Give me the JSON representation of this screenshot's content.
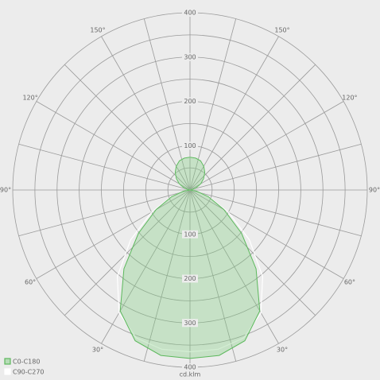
{
  "chart_data": {
    "type": "polar",
    "unit_label": "cd.klm",
    "rlim": [
      0,
      400
    ],
    "rgrid": [
      50,
      100,
      150,
      200,
      250,
      300,
      350,
      400
    ],
    "rticks": [
      100,
      200,
      300,
      400
    ],
    "angle_grid_step": 15,
    "angle_ticks": [
      {
        "value": 30,
        "label": "30°"
      },
      {
        "value": 60,
        "label": "60°"
      },
      {
        "value": 90,
        "label": "90°"
      },
      {
        "value": 120,
        "label": "120°"
      },
      {
        "value": 150,
        "label": "150°"
      }
    ],
    "x": [
      0,
      10,
      20,
      30,
      40,
      50,
      60,
      70,
      80,
      90,
      100,
      110,
      120,
      130,
      140,
      150,
      160,
      170,
      180
    ],
    "series": [
      {
        "name": "C90-C270",
        "color": "#ffffff",
        "values": [
          365,
          365,
          355,
          320,
          255,
          175,
          100,
          45,
          15,
          0,
          5,
          15,
          28,
          40,
          52,
          62,
          70,
          73,
          74
        ]
      },
      {
        "name": "C0-C180",
        "color": "#5cb85c",
        "values": [
          380,
          379,
          362,
          315,
          232,
          152,
          88,
          44,
          15,
          0,
          5,
          15,
          28,
          40,
          52,
          62,
          70,
          73,
          74
        ]
      }
    ]
  }
}
